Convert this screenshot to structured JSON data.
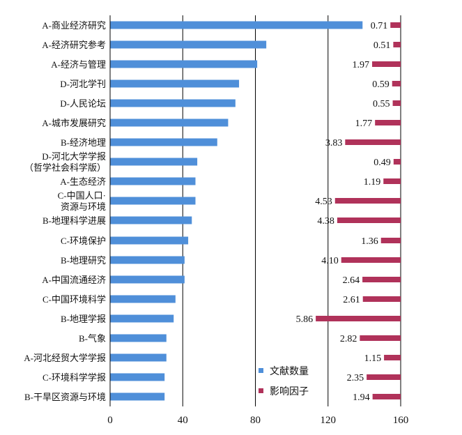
{
  "chart_data": {
    "type": "bar",
    "categories": [
      [
        "A-商业经济研究"
      ],
      [
        "A-经济研究参考"
      ],
      [
        "A-经济与管理"
      ],
      [
        "D-河北学刊"
      ],
      [
        "D-人民论坛"
      ],
      [
        "A-城市发展研究"
      ],
      [
        "B-经济地理"
      ],
      [
        "D-河北大学学报",
        "（哲学社会科学版）"
      ],
      [
        "A-生态经济"
      ],
      [
        "C-中国人口·",
        "资源与环境"
      ],
      [
        "B-地理科学进展"
      ],
      [
        "C-环境保护"
      ],
      [
        "B-地理研究"
      ],
      [
        "A-中国流通经济"
      ],
      [
        "C-中国环境科学"
      ],
      [
        "B-地理学报"
      ],
      [
        "B-气象"
      ],
      [
        "A-河北经贸大学学报"
      ],
      [
        "C-环境科学学报"
      ],
      [
        "B-干旱区资源与环境"
      ]
    ],
    "series": [
      {
        "name": "文献数量",
        "color": "#4F8FD9",
        "values": [
          139,
          86,
          81,
          71,
          69,
          65,
          59,
          48,
          47,
          47,
          45,
          43,
          41,
          41,
          36,
          35,
          31,
          31,
          30,
          30
        ]
      },
      {
        "name": "影响因子",
        "color": "#B0325A",
        "values": [
          0.71,
          0.51,
          1.97,
          0.59,
          0.55,
          1.77,
          3.83,
          0.49,
          1.19,
          4.53,
          4.38,
          1.36,
          4.1,
          2.64,
          2.61,
          5.86,
          2.82,
          1.15,
          2.35,
          1.94
        ],
        "labels": [
          "0.71",
          "0.51",
          "1.97",
          "0.59",
          "0.55",
          "1.77",
          "3.83",
          "0.49",
          "1.19",
          "4.53",
          "4.38",
          "1.36",
          "4.10",
          "2.64",
          "2.61",
          "5.86",
          "2.82",
          "1.15",
          "2.35",
          "1.94"
        ]
      }
    ],
    "xticks": [
      "0",
      "40",
      "80",
      "120",
      "160"
    ],
    "xlim": [
      0,
      160
    ],
    "impact_max": 6,
    "legend_position": "bottom-right",
    "grid": "vertical"
  }
}
